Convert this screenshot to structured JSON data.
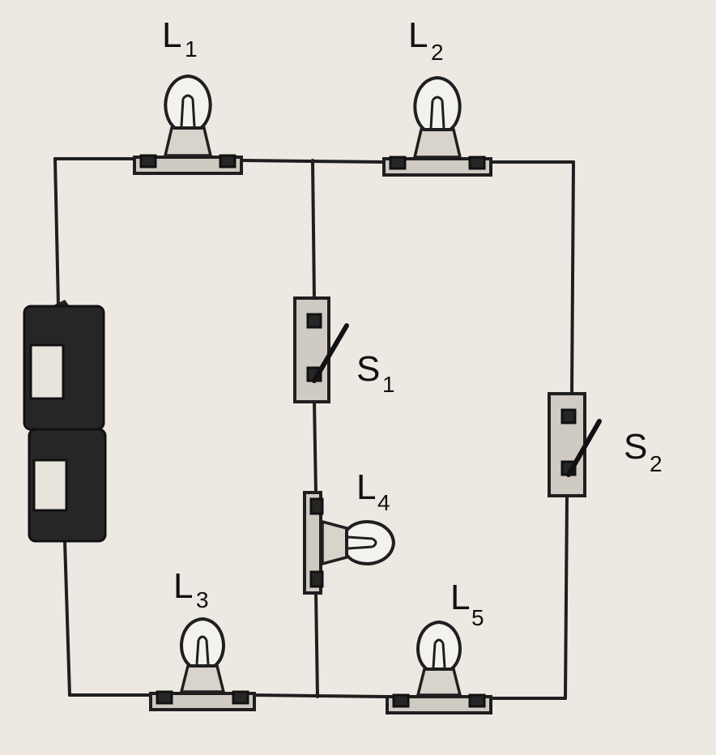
{
  "labels": {
    "L1": {
      "main": "L",
      "sub": "1"
    },
    "L2": {
      "main": "L",
      "sub": "2"
    },
    "L3": {
      "main": "L",
      "sub": "3"
    },
    "L4": {
      "main": "L",
      "sub": "4"
    },
    "L5": {
      "main": "L",
      "sub": "5"
    },
    "S1": {
      "main": "S",
      "sub": "1"
    },
    "S2": {
      "main": "S",
      "sub": "2"
    }
  },
  "colors": {
    "paper": "#ede9e2",
    "ink": "#1f1f1f"
  }
}
